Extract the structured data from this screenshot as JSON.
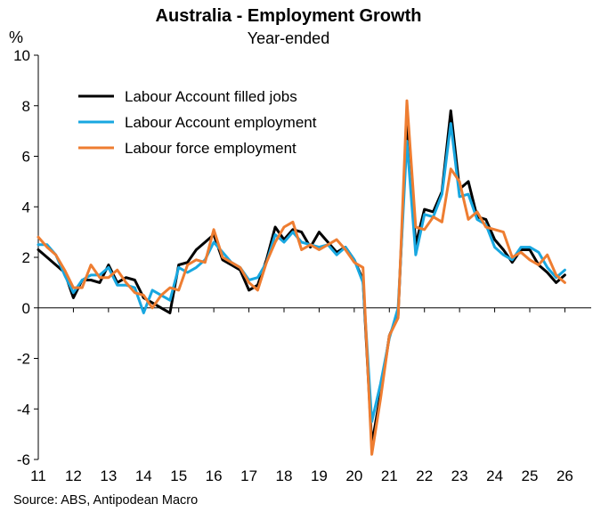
{
  "chart_data": {
    "type": "line",
    "title": "Australia - Employment Growth",
    "subtitle": "Year-ended",
    "ylabel": "%",
    "source": "Source: ABS, Antipodean Macro",
    "ylim": [
      -6,
      10
    ],
    "yticks": [
      -6,
      -4,
      -2,
      0,
      2,
      4,
      6,
      8,
      10
    ],
    "xlim": [
      2011,
      2026.75
    ],
    "xtick_labels": [
      "11",
      "12",
      "13",
      "14",
      "15",
      "16",
      "17",
      "18",
      "19",
      "20",
      "21",
      "22",
      "23",
      "24",
      "25",
      "26"
    ],
    "legend_position": "top-left",
    "series": [
      {
        "name": "Labour Account filled jobs",
        "color": "#000000",
        "x": [
          2011.0,
          2011.25,
          2011.5,
          2011.75,
          2012.0,
          2012.25,
          2012.5,
          2012.75,
          2013.0,
          2013.25,
          2013.5,
          2013.75,
          2014.0,
          2014.25,
          2014.5,
          2014.75,
          2015.0,
          2015.25,
          2015.5,
          2015.75,
          2016.0,
          2016.25,
          2016.5,
          2016.75,
          2017.0,
          2017.25,
          2017.5,
          2017.75,
          2018.0,
          2018.25,
          2018.5,
          2018.75,
          2019.0,
          2019.25,
          2019.5,
          2019.75,
          2020.0,
          2020.25,
          2020.5,
          2020.75,
          2021.0,
          2021.25,
          2021.5,
          2021.75,
          2022.0,
          2022.25,
          2022.5,
          2022.75,
          2023.0,
          2023.25,
          2023.5,
          2023.75,
          2024.0,
          2024.25,
          2024.5,
          2024.75,
          2025.0,
          2025.25,
          2025.5,
          2025.75,
          2026.0
        ],
        "values": [
          2.3,
          2.0,
          1.7,
          1.4,
          0.4,
          1.1,
          1.1,
          1.0,
          1.7,
          1.0,
          1.2,
          1.1,
          0.4,
          0.2,
          0.0,
          -0.2,
          1.7,
          1.8,
          2.3,
          2.6,
          2.9,
          1.9,
          1.7,
          1.5,
          0.7,
          0.9,
          1.9,
          3.2,
          2.7,
          3.1,
          3.0,
          2.4,
          3.0,
          2.6,
          2.2,
          2.4,
          1.9,
          1.1,
          -5.4,
          -3.4,
          -1.1,
          -0.3,
          7.4,
          2.5,
          3.9,
          3.8,
          4.6,
          7.8,
          4.7,
          5.0,
          3.6,
          3.5,
          2.7,
          2.3,
          1.8,
          2.3,
          2.3,
          1.7,
          1.4,
          1.0,
          1.3
        ]
      },
      {
        "name": "Labour Account employment",
        "color": "#18a7e0",
        "x": [
          2011.0,
          2011.25,
          2011.5,
          2011.75,
          2012.0,
          2012.25,
          2012.5,
          2012.75,
          2013.0,
          2013.25,
          2013.5,
          2013.75,
          2014.0,
          2014.25,
          2014.5,
          2014.75,
          2015.0,
          2015.25,
          2015.5,
          2015.75,
          2016.0,
          2016.25,
          2016.5,
          2016.75,
          2017.0,
          2017.25,
          2017.5,
          2017.75,
          2018.0,
          2018.25,
          2018.5,
          2018.75,
          2019.0,
          2019.25,
          2019.5,
          2019.75,
          2020.0,
          2020.25,
          2020.5,
          2020.75,
          2021.0,
          2021.25,
          2021.5,
          2021.75,
          2022.0,
          2022.25,
          2022.5,
          2022.75,
          2023.0,
          2023.25,
          2023.5,
          2023.75,
          2024.0,
          2024.25,
          2024.5,
          2024.75,
          2025.0,
          2025.25,
          2025.5,
          2025.75,
          2026.0
        ],
        "values": [
          2.5,
          2.5,
          2.1,
          1.3,
          0.6,
          1.1,
          1.3,
          1.3,
          1.6,
          0.9,
          0.9,
          0.8,
          -0.2,
          0.7,
          0.5,
          0.3,
          1.6,
          1.4,
          1.6,
          1.9,
          2.6,
          2.2,
          1.8,
          1.6,
          1.1,
          1.2,
          1.8,
          2.9,
          2.6,
          3.0,
          2.6,
          2.5,
          2.4,
          2.5,
          2.1,
          2.4,
          1.9,
          1.0,
          -4.5,
          -3.0,
          -1.2,
          0.0,
          6.6,
          2.1,
          3.7,
          3.6,
          4.5,
          7.3,
          4.4,
          4.5,
          3.5,
          3.3,
          2.4,
          2.1,
          1.9,
          2.4,
          2.4,
          2.2,
          1.6,
          1.2,
          1.5
        ]
      },
      {
        "name": "Labour force employment",
        "color": "#ee7d31",
        "x": [
          2011.0,
          2011.25,
          2011.5,
          2011.75,
          2012.0,
          2012.25,
          2012.5,
          2012.75,
          2013.0,
          2013.25,
          2013.5,
          2013.75,
          2014.0,
          2014.25,
          2014.5,
          2014.75,
          2015.0,
          2015.25,
          2015.5,
          2015.75,
          2016.0,
          2016.25,
          2016.5,
          2016.75,
          2017.0,
          2017.25,
          2017.5,
          2017.75,
          2018.0,
          2018.25,
          2018.5,
          2018.75,
          2019.0,
          2019.25,
          2019.5,
          2019.75,
          2020.0,
          2020.25,
          2020.5,
          2020.75,
          2021.0,
          2021.25,
          2021.5,
          2021.75,
          2022.0,
          2022.25,
          2022.5,
          2022.75,
          2023.0,
          2023.25,
          2023.5,
          2023.75,
          2024.0,
          2024.25,
          2024.5,
          2024.75,
          2025.0,
          2025.25,
          2025.5,
          2025.75,
          2026.0
        ],
        "values": [
          2.8,
          2.4,
          2.1,
          1.5,
          0.8,
          0.8,
          1.7,
          1.2,
          1.2,
          1.5,
          1.0,
          0.6,
          0.5,
          0.0,
          0.5,
          0.8,
          0.7,
          1.7,
          1.9,
          1.8,
          3.1,
          2.0,
          1.8,
          1.6,
          1.0,
          0.7,
          1.8,
          2.6,
          3.2,
          3.4,
          2.3,
          2.5,
          2.3,
          2.5,
          2.7,
          2.3,
          1.8,
          1.6,
          -5.8,
          -3.6,
          -1.1,
          -0.4,
          8.2,
          3.2,
          3.1,
          3.6,
          3.4,
          5.5,
          5.0,
          3.5,
          3.8,
          3.2,
          3.1,
          3.0,
          2.0,
          2.2,
          1.9,
          1.7,
          2.1,
          1.3,
          1.0
        ]
      }
    ]
  }
}
